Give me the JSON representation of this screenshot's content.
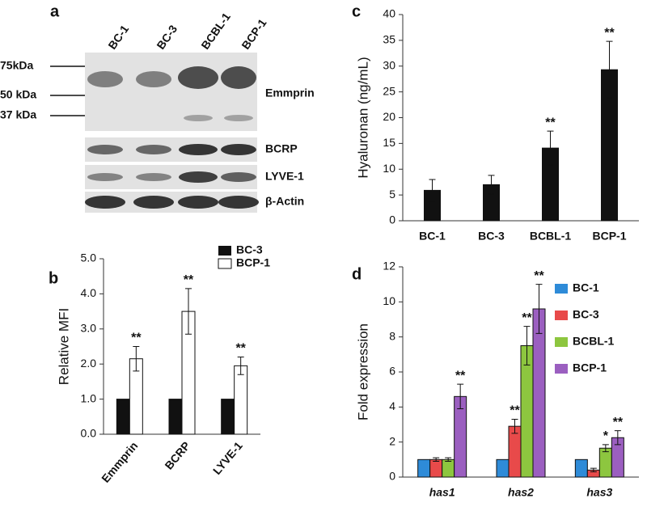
{
  "blot": {
    "panel": "a",
    "lanes": [
      "BC-1",
      "BC-3",
      "BCBL-1",
      "BCP-1"
    ],
    "markers": [
      "75kDa",
      "50 kDa",
      "37 kDa"
    ],
    "proteins": [
      "Emmprin",
      "BCRP",
      "LYVE-1",
      "β-Actin"
    ]
  },
  "chart_data": [
    {
      "type": "bar",
      "panel": "b",
      "y_label": "Relative MFI",
      "categories": [
        "Emmprin",
        "BCRP",
        "LYVE-1"
      ],
      "series": [
        {
          "name": "BC-3",
          "color": "#111111",
          "values": [
            1.0,
            1.0,
            1.0
          ]
        },
        {
          "name": "BCP-1",
          "color": "#ffffff",
          "values": [
            2.15,
            3.5,
            1.95
          ],
          "errors": [
            0.35,
            0.65,
            0.25
          ],
          "marks": [
            "**",
            "**",
            "**"
          ]
        }
      ],
      "ylim": [
        0,
        5
      ],
      "yticks": [
        {
          "value": 0,
          "label": "0.0"
        },
        {
          "value": 1,
          "label": "1.0"
        },
        {
          "value": 2,
          "label": "2.0"
        },
        {
          "value": 3,
          "label": "3.0"
        },
        {
          "value": 4,
          "label": "4.0"
        },
        {
          "value": 5,
          "label": "5.0"
        }
      ],
      "legend": "top-right",
      "rotate_categories": true
    },
    {
      "type": "bar",
      "panel": "c",
      "y_label": "Hyaluronan (ng/mL)",
      "categories": [
        "BC-1",
        "BC-3",
        "BCBL-1",
        "BCP-1"
      ],
      "series": [
        {
          "color": "#111111",
          "values": [
            5.9,
            7.0,
            14.1,
            29.3
          ],
          "errors": [
            2.1,
            1.8,
            3.3,
            5.5
          ],
          "marks": [
            null,
            null,
            "**",
            "**"
          ]
        }
      ],
      "ylim": [
        0,
        40
      ],
      "yticks": [
        0,
        5,
        10,
        15,
        20,
        25,
        30,
        35,
        40
      ]
    },
    {
      "type": "bar",
      "panel": "d",
      "y_label": "Fold expression",
      "categories": [
        "has1",
        "has2",
        "has3"
      ],
      "series": [
        {
          "name": "BC-1",
          "color": "#2e8bd8",
          "values": [
            1,
            1,
            1
          ]
        },
        {
          "name": "BC-3",
          "color": "#e84a4a",
          "values": [
            1.0,
            2.9,
            0.4
          ],
          "errors": [
            0.1,
            0.4,
            0.1
          ],
          "marks": [
            null,
            "**",
            null
          ]
        },
        {
          "name": "BCBL-1",
          "color": "#8dc63f",
          "values": [
            1.0,
            7.5,
            1.65
          ],
          "errors": [
            0.1,
            1.1,
            0.2
          ],
          "marks": [
            null,
            "**",
            "*"
          ]
        },
        {
          "name": "BCP-1",
          "color": "#9b5fc0",
          "values": [
            4.6,
            9.6,
            2.25
          ],
          "errors": [
            0.7,
            1.4,
            0.4
          ],
          "marks": [
            "**",
            "**",
            "**"
          ]
        }
      ],
      "ylim": [
        0,
        12
      ],
      "yticks": [
        0,
        2,
        4,
        6,
        8,
        10,
        12
      ],
      "legend": "right",
      "italic_categories": true
    }
  ]
}
